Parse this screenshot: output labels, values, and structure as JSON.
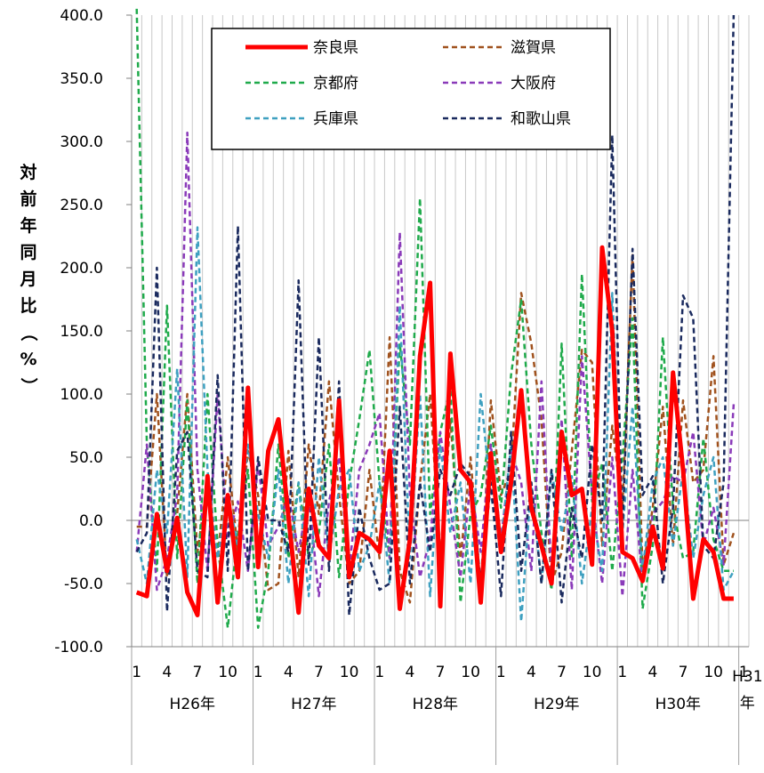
{
  "chart_data": {
    "type": "line",
    "ylabel": "対前年同月比（%）",
    "ylim": [
      -100,
      400
    ],
    "y_ticks": [
      "400.0",
      "350.0",
      "300.0",
      "250.0",
      "200.0",
      "150.0",
      "100.0",
      "50.0",
      "0.0",
      "-50.0",
      "-100.0"
    ],
    "month_ticks": [
      "1",
      "4",
      "7",
      "10",
      "1",
      "4",
      "7",
      "10",
      "1",
      "4",
      "7",
      "10",
      "1",
      "4",
      "7",
      "10",
      "1",
      "4",
      "7",
      "10",
      "1"
    ],
    "year_labels": [
      "H26年",
      "H27年",
      "H28年",
      "H29年",
      "H30年",
      "H31年"
    ],
    "grid": "vertical",
    "legend_position": "top-right",
    "series": [
      {
        "name": "奈良県",
        "color": "#ff0000",
        "dash": "solid",
        "values": [
          -57,
          -60,
          5,
          -40,
          2,
          -57,
          -75,
          35,
          -65,
          20,
          -45,
          105,
          -37,
          55,
          80,
          3,
          -73,
          25,
          -20,
          -30,
          95,
          -45,
          -10,
          -15,
          -25,
          55,
          -70,
          -15,
          130,
          188,
          -68,
          132,
          40,
          30,
          -65,
          53,
          -25,
          30,
          103,
          10,
          -20,
          -50,
          70,
          20,
          25,
          -35,
          216,
          150,
          -25,
          -30,
          -48,
          -5,
          -38,
          117,
          40,
          -62,
          -15,
          -25,
          -62,
          -62
        ]
      },
      {
        "name": "滋賀県",
        "color": "#a0521e",
        "dash": "dash",
        "values": [
          -5,
          -5,
          100,
          -45,
          5,
          100,
          -25,
          30,
          -30,
          50,
          -25,
          55,
          20,
          -55,
          -50,
          55,
          -45,
          60,
          5,
          110,
          20,
          -50,
          -40,
          40,
          -30,
          145,
          -40,
          -65,
          30,
          100,
          -30,
          80,
          -30,
          50,
          -55,
          95,
          20,
          40,
          180,
          140,
          80,
          -50,
          -25,
          55,
          135,
          125,
          -20,
          75,
          10,
          210,
          -40,
          10,
          90,
          -20,
          95,
          30,
          40,
          130,
          -35,
          -10
        ]
      },
      {
        "name": "京都府",
        "color": "#1faa4b",
        "dash": "dash",
        "values": [
          405,
          60,
          -40,
          170,
          -30,
          95,
          -50,
          100,
          -20,
          -85,
          -10,
          40,
          -85,
          -40,
          60,
          -30,
          30,
          -30,
          -10,
          60,
          -45,
          30,
          80,
          135,
          30,
          -30,
          140,
          60,
          255,
          5,
          70,
          105,
          -65,
          5,
          20,
          75,
          10,
          115,
          175,
          60,
          -10,
          -55,
          140,
          -30,
          195,
          15,
          45,
          -40,
          50,
          160,
          -70,
          -20,
          145,
          10,
          -30,
          -25,
          65,
          -15,
          -40,
          -40
        ]
      },
      {
        "name": "大阪府",
        "color": "#8a3ab9",
        "dash": "dash",
        "values": [
          -25,
          60,
          -55,
          -30,
          20,
          307,
          40,
          -40,
          100,
          -15,
          15,
          -40,
          45,
          -20,
          -5,
          20,
          -25,
          20,
          -60,
          15,
          50,
          -40,
          40,
          60,
          85,
          -30,
          228,
          20,
          -45,
          -15,
          70,
          10,
          -45,
          30,
          -25,
          60,
          -15,
          55,
          30,
          -40,
          110,
          -40,
          80,
          -55,
          130,
          20,
          -50,
          50,
          -60,
          40,
          -50,
          5,
          15,
          35,
          30,
          70,
          -20,
          10,
          -35,
          92
        ]
      },
      {
        "name": "兵庫県",
        "color": "#3ea0c0",
        "dash": "dash",
        "values": [
          -15,
          -50,
          40,
          -10,
          120,
          -45,
          232,
          40,
          -30,
          20,
          -20,
          60,
          5,
          -30,
          40,
          -50,
          30,
          -60,
          50,
          -30,
          25,
          40,
          -40,
          -20,
          30,
          -50,
          170,
          -30,
          100,
          -60,
          60,
          -10,
          30,
          -50,
          100,
          20,
          -20,
          60,
          -80,
          30,
          -50,
          40,
          -10,
          35,
          -50,
          10,
          -40,
          180,
          -10,
          90,
          -40,
          30,
          50,
          -20,
          40,
          -30,
          20,
          50,
          -55,
          -40
        ]
      },
      {
        "name": "和歌山県",
        "color": "#1a2a5e",
        "dash": "dash",
        "values": [
          -25,
          -10,
          200,
          -72,
          55,
          70,
          -40,
          -45,
          115,
          -40,
          233,
          -40,
          50,
          0,
          0,
          -25,
          190,
          -35,
          145,
          -40,
          110,
          -75,
          10,
          -30,
          -55,
          -50,
          90,
          -50,
          30,
          -25,
          40,
          20,
          45,
          35,
          -50,
          30,
          -60,
          70,
          -40,
          30,
          -50,
          40,
          -65,
          10,
          -30,
          60,
          0,
          305,
          -10,
          215,
          20,
          35,
          -50,
          10,
          178,
          160,
          -20,
          -30,
          30,
          400
        ]
      }
    ]
  }
}
